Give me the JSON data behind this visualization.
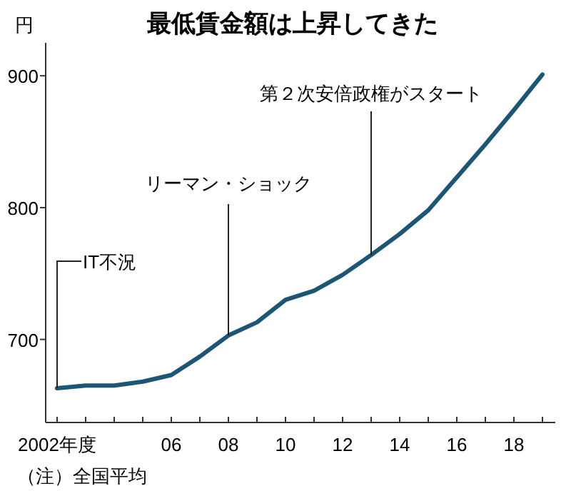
{
  "chart_data": {
    "type": "line",
    "title": "最低賃金額は上昇してきた",
    "ylabel": "円",
    "x": [
      2002,
      2003,
      2004,
      2005,
      2006,
      2007,
      2008,
      2009,
      2010,
      2011,
      2012,
      2013,
      2014,
      2015,
      2016,
      2017,
      2018,
      2019
    ],
    "series": [
      {
        "color": "#1b5674",
        "values": [
          663,
          665,
          665,
          668,
          673,
          687,
          703,
          713,
          730,
          737,
          749,
          764,
          780,
          798,
          823,
          848,
          874,
          901
        ]
      }
    ],
    "xlim": [
      2001.6,
      2019.45
    ],
    "xticks": [
      {
        "value": 2002,
        "label": "2002年度"
      },
      {
        "value": 2003,
        "label": null
      },
      {
        "value": 2004,
        "label": null
      },
      {
        "value": 2005,
        "label": null
      },
      {
        "value": 2006,
        "label": "06"
      },
      {
        "value": 2007,
        "label": null
      },
      {
        "value": 2008,
        "label": "08"
      },
      {
        "value": 2009,
        "label": null
      },
      {
        "value": 2010,
        "label": "10"
      },
      {
        "value": 2011,
        "label": null
      },
      {
        "value": 2012,
        "label": "12"
      },
      {
        "value": 2013,
        "label": null
      },
      {
        "value": 2014,
        "label": "14"
      },
      {
        "value": 2015,
        "label": null
      },
      {
        "value": 2016,
        "label": "16"
      },
      {
        "value": 2017,
        "label": null
      },
      {
        "value": 2018,
        "label": "18"
      },
      {
        "value": 2019,
        "label": null
      }
    ],
    "ylim": [
      637,
      925
    ],
    "yticks": [
      700,
      800,
      900
    ],
    "grid": false,
    "marker": "none",
    "line_style": "solid",
    "annotations": [
      {
        "text": "IT不況",
        "x": 2002,
        "y": 663
      },
      {
        "text": "リーマン・ショック",
        "x": 2008,
        "y": 703
      },
      {
        "text": "第２次安倍政権がスタート",
        "x": 2013,
        "y": 764
      },
      "（注）全国平均"
    ]
  }
}
